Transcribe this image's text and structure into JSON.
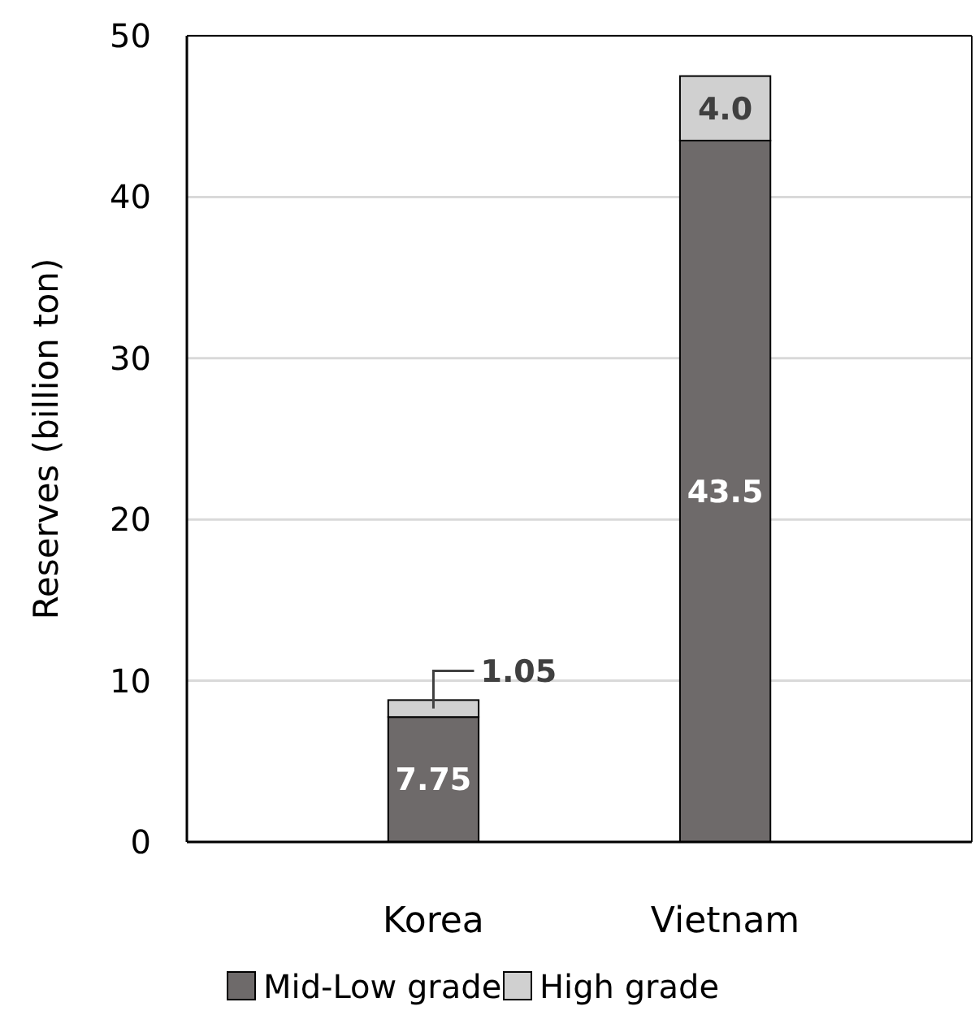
{
  "chart_data": {
    "type": "bar",
    "stacked": true,
    "ylabel": "Reserves (billion ton)",
    "categories": [
      "Korea",
      "Vietnam"
    ],
    "series": [
      {
        "name": "Mid-Low grade",
        "color": "#6e6a6a",
        "values": [
          7.75,
          43.5
        ],
        "value_labels": [
          "7.75",
          "43.5"
        ]
      },
      {
        "name": "High grade",
        "color": "#d0d0d0",
        "values": [
          1.05,
          4.0
        ],
        "value_labels": [
          "1.05",
          "4.0"
        ]
      }
    ],
    "ylim": [
      0,
      50
    ],
    "yticks": [
      0,
      10,
      20,
      30,
      40,
      50
    ],
    "grid": "y",
    "legend": "bottom"
  }
}
